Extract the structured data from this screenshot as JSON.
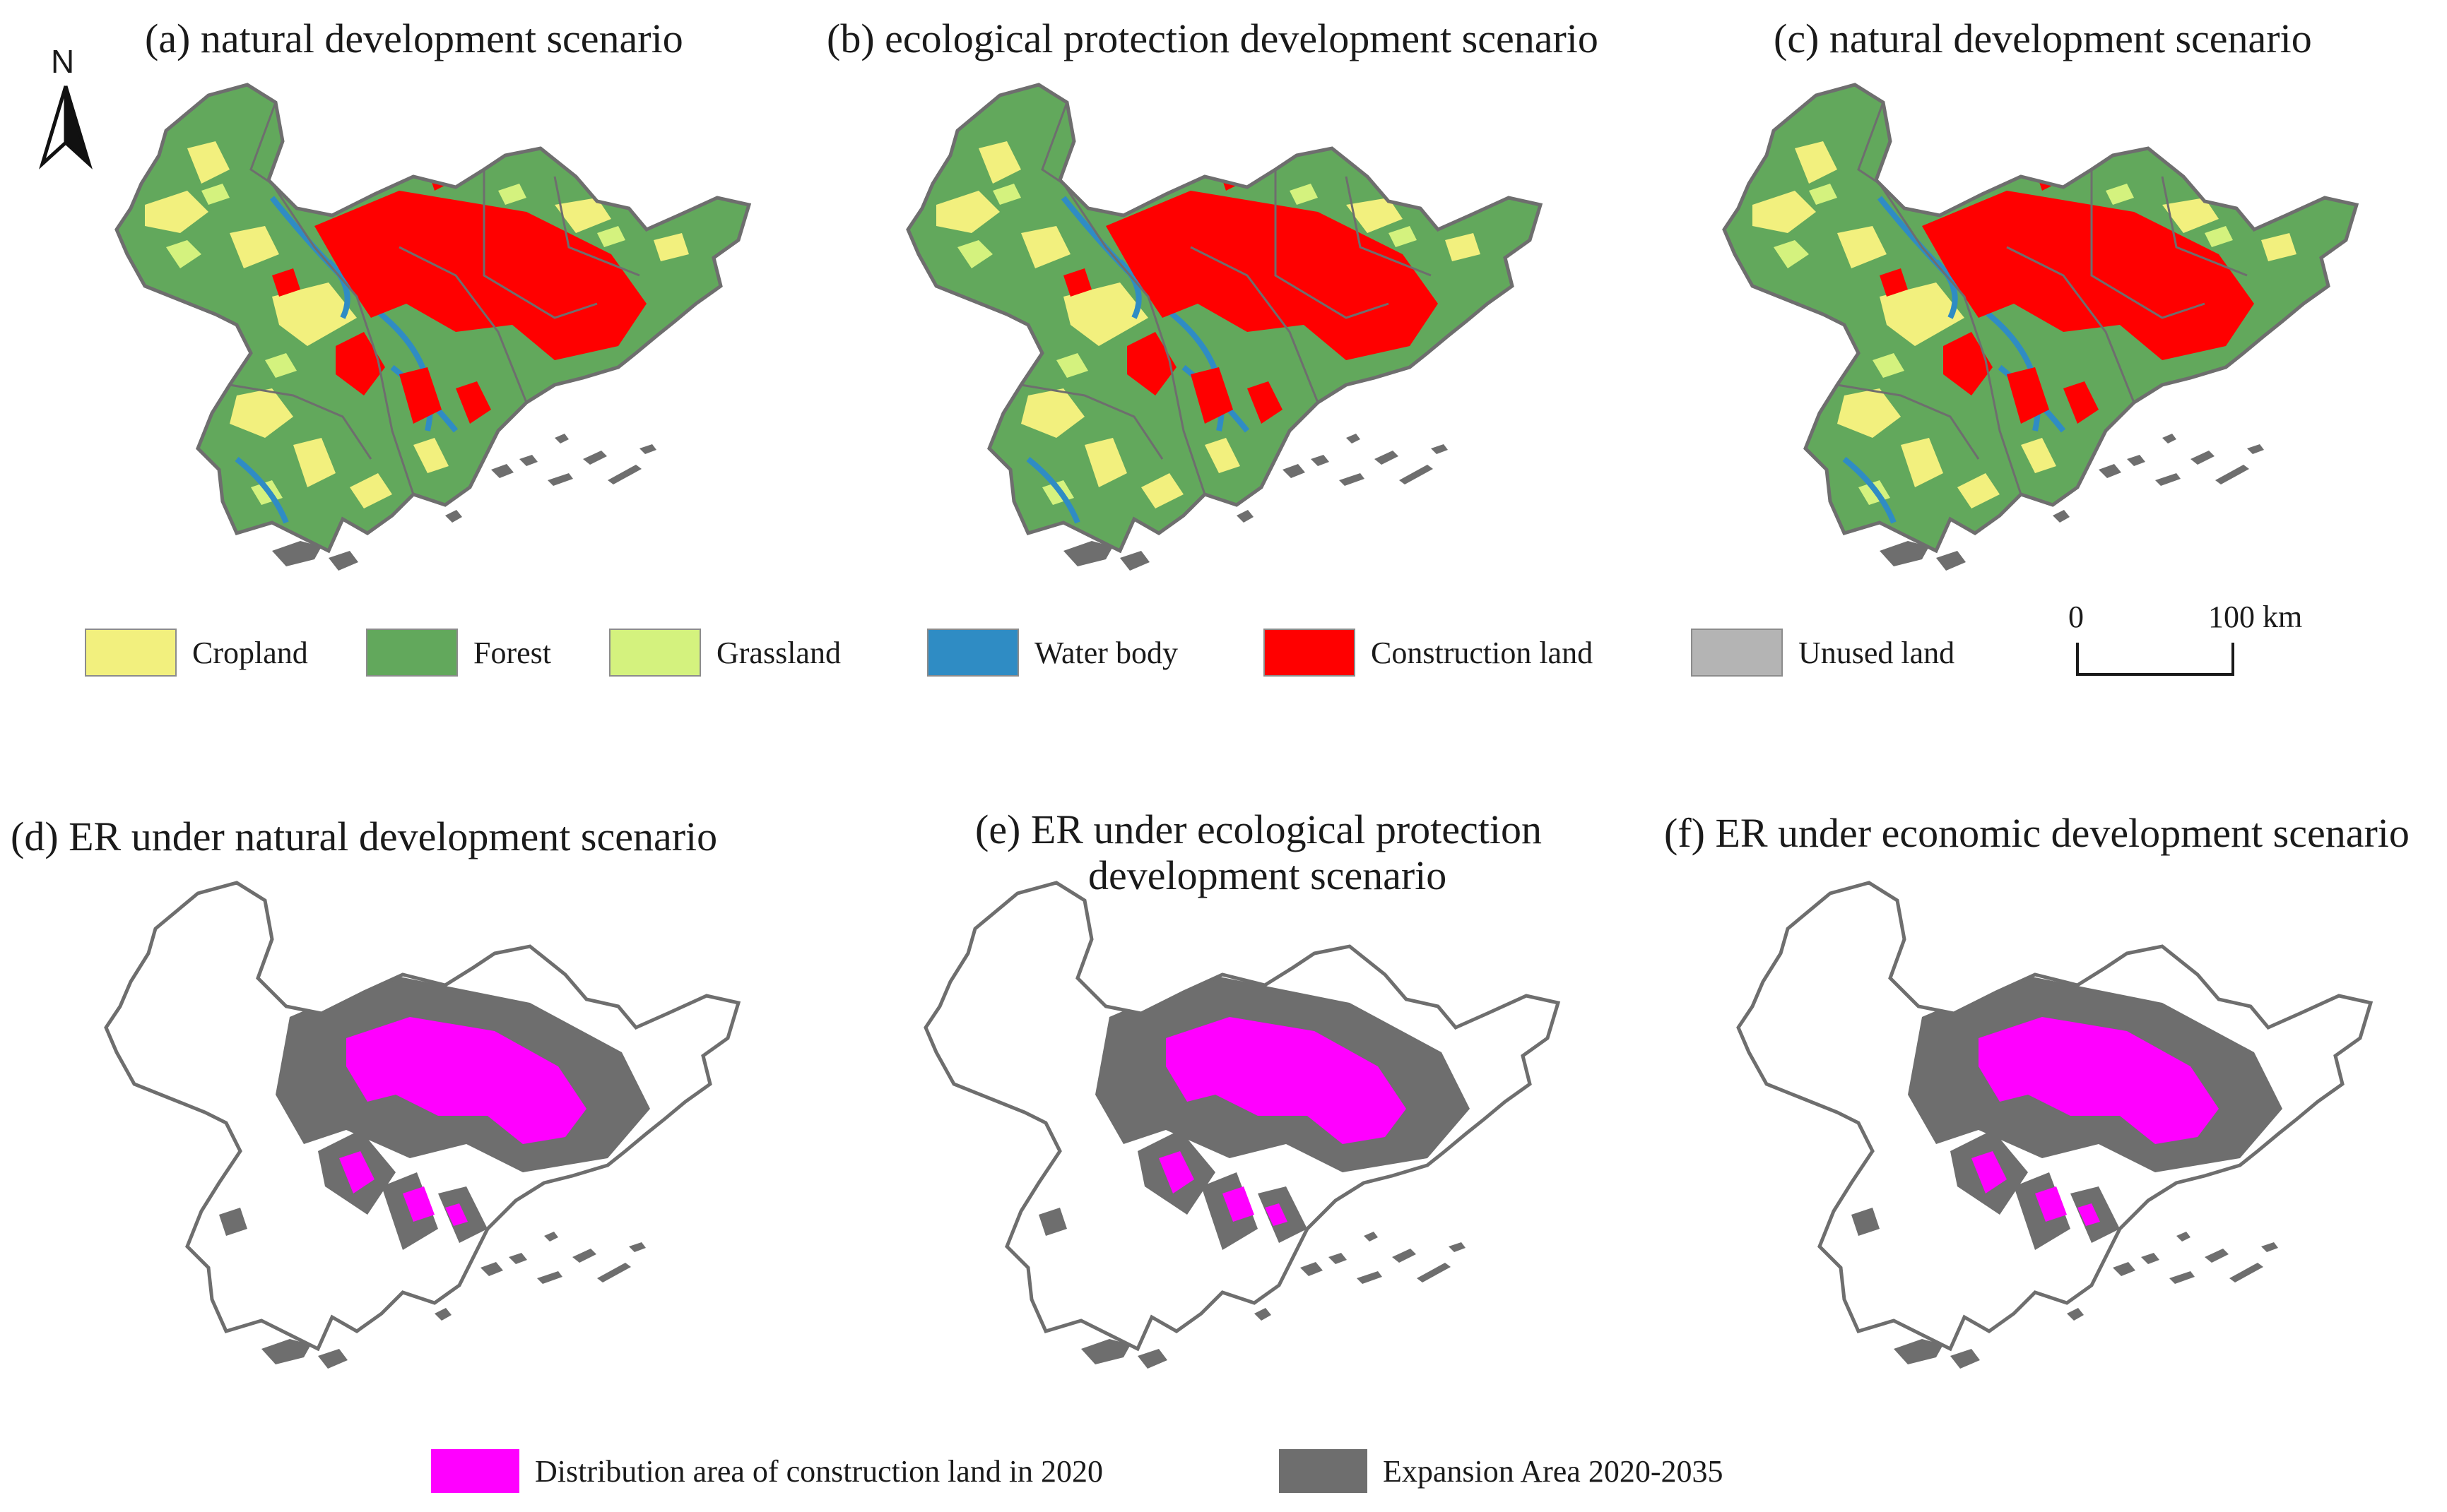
{
  "titles": {
    "a": "(a) natural development scenario",
    "b": "(b)  ecological protection development scenario",
    "c": "(c) natural development scenario",
    "d": "(d) ER under natural development scenario",
    "e_line1": "(e) ER under ecological protection",
    "e_line2": "development scenario",
    "f": "(f) ER under economic development scenario"
  },
  "north_arrow": {
    "label": "N"
  },
  "legend_landuse": [
    {
      "label": "Cropland",
      "color": "#f2f07e"
    },
    {
      "label": "Forest",
      "color": "#62a85c"
    },
    {
      "label": "Grassland",
      "color": "#d4f27e"
    },
    {
      "label": "Water body",
      "color": "#2f8cc4"
    },
    {
      "label": "Construction land",
      "color": "#ff0000"
    },
    {
      "label": "Unused land",
      "color": "#b4b4b4"
    }
  ],
  "scale": {
    "start": "0",
    "end": "100 km"
  },
  "legend_expansion": [
    {
      "label": "Distribution area of construction land in 2020",
      "color": "#ff00ff"
    },
    {
      "label": "Expansion Area 2020-2035",
      "color": "#6e6e6e"
    }
  ],
  "colors": {
    "outline": "#6e6e6e"
  }
}
